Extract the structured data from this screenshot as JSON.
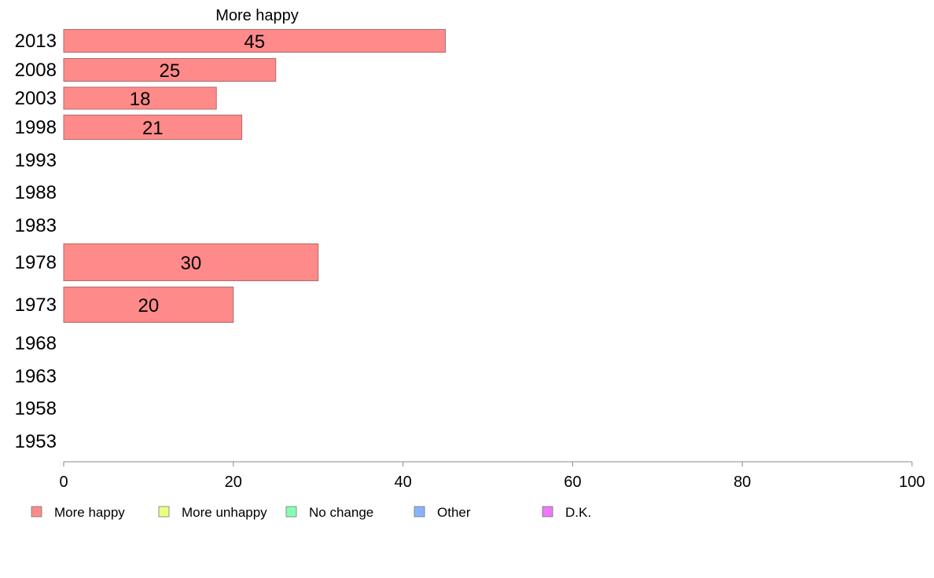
{
  "chart_data": {
    "type": "bar",
    "orientation": "horizontal",
    "title": "More happy",
    "categories": [
      "2013",
      "2008",
      "2003",
      "1998",
      "1993",
      "1988",
      "1983",
      "1978",
      "1973",
      "1968",
      "1963",
      "1958",
      "1953"
    ],
    "series": [
      {
        "name": "More happy",
        "color": "#ff8a8a",
        "values": [
          45,
          25,
          18,
          21,
          null,
          null,
          null,
          30,
          20,
          null,
          null,
          null,
          null
        ],
        "labels": [
          "45",
          "25",
          "18",
          "21",
          "",
          "",
          "",
          "30",
          "20",
          "",
          "",
          "",
          ""
        ]
      }
    ],
    "xlim": [
      0,
      100
    ],
    "xticks": [
      0,
      20,
      40,
      60,
      80,
      100
    ],
    "xtick_labels": [
      "0",
      "20",
      "40",
      "60",
      "80",
      "100"
    ],
    "grid": false,
    "legend": {
      "position": "bottom",
      "items": [
        {
          "label": "More happy",
          "color": "#ff8a8a"
        },
        {
          "label": "More unhappy",
          "color": "#eeff80"
        },
        {
          "label": "No change",
          "color": "#88ffb0"
        },
        {
          "label": "Other",
          "color": "#88b4ff"
        },
        {
          "label": "D.K.",
          "color": "#ee77ff"
        }
      ]
    }
  }
}
